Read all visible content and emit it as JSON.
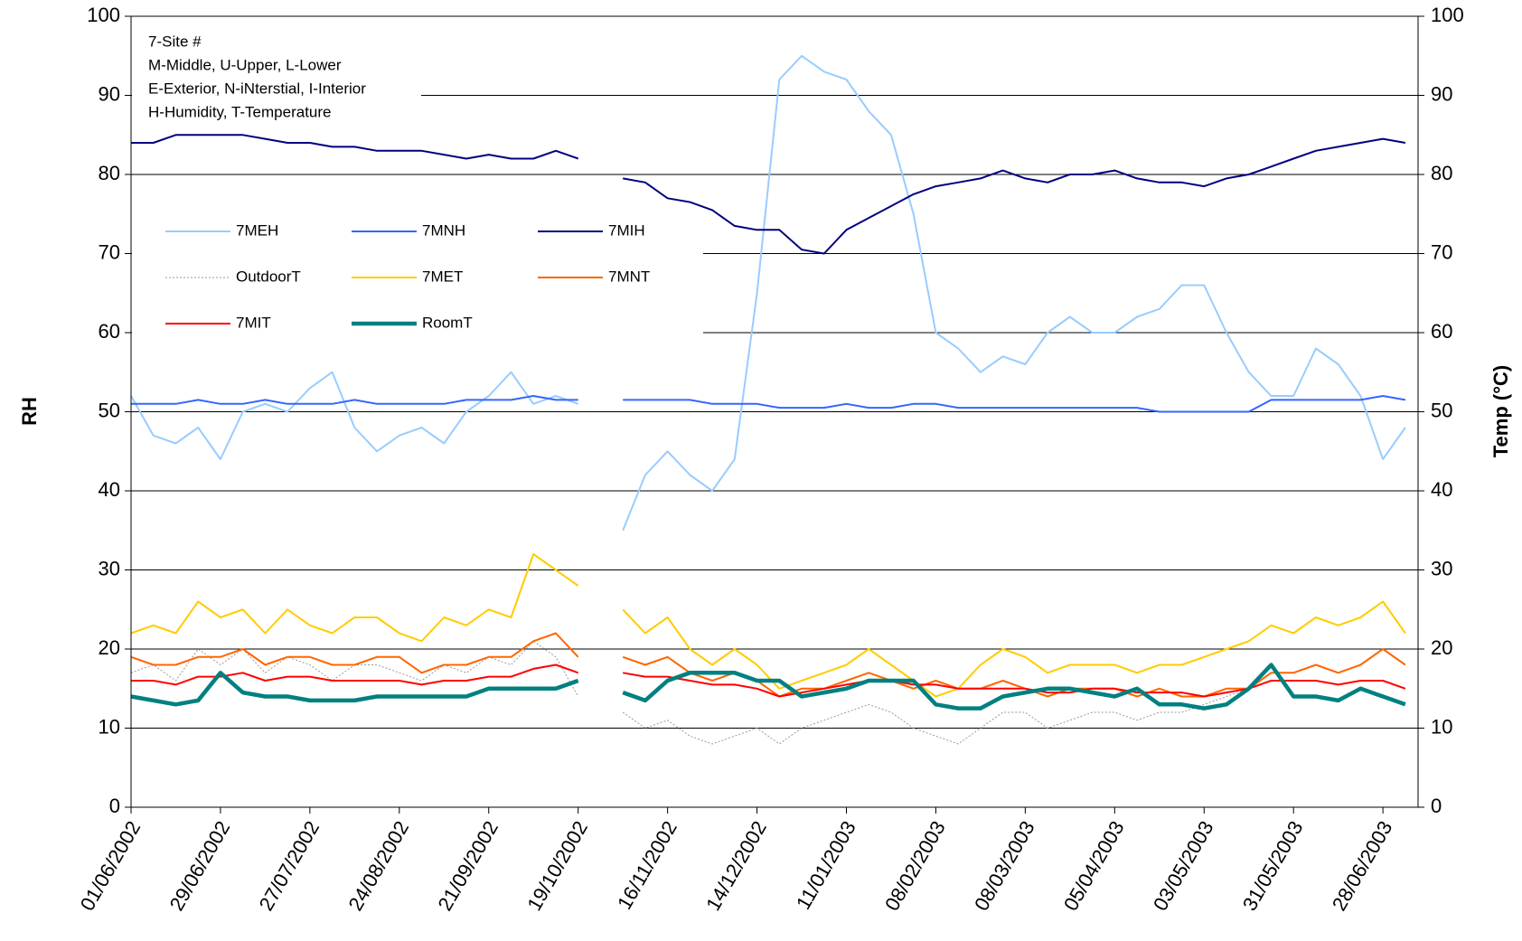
{
  "chart_data": {
    "type": "line",
    "annotation": [
      "7-Site #",
      "M-Middle, U-Upper, L-Lower",
      "E-Exterior, N-iNterstial, I-Interior",
      "H-Humidity, T-Temperature"
    ],
    "y_label": "RH",
    "y2_label": "Temp (°C)",
    "x": [
      "01/06/2002",
      "08/06/2002",
      "15/06/2002",
      "22/06/2002",
      "29/06/2002",
      "06/07/2002",
      "13/07/2002",
      "20/07/2002",
      "27/07/2002",
      "03/08/2002",
      "10/08/2002",
      "17/08/2002",
      "24/08/2002",
      "31/08/2002",
      "07/09/2002",
      "14/09/2002",
      "21/09/2002",
      "28/09/2002",
      "05/10/2002",
      "12/10/2002",
      "19/10/2002",
      "26/10/2002",
      "02/11/2002",
      "09/11/2002",
      "16/11/2002",
      "23/11/2002",
      "30/11/2002",
      "07/12/2002",
      "14/12/2002",
      "21/12/2002",
      "28/12/2002",
      "04/01/2003",
      "11/01/2003",
      "18/01/2003",
      "25/01/2003",
      "01/02/2003",
      "08/02/2003",
      "15/02/2003",
      "22/02/2003",
      "01/03/2003",
      "08/03/2003",
      "15/03/2003",
      "22/03/2003",
      "29/03/2003",
      "05/04/2003",
      "12/04/2003",
      "19/04/2003",
      "26/04/2003",
      "03/05/2003",
      "10/05/2003",
      "17/05/2003",
      "24/05/2003",
      "31/05/2003",
      "07/06/2003",
      "14/06/2003",
      "21/06/2003",
      "28/06/2003",
      "05/07/2003"
    ],
    "xlim": [
      "01/06/2002",
      "09/07/2003"
    ],
    "xticks": [
      "01/06/2002",
      "29/06/2002",
      "27/07/2002",
      "24/08/2002",
      "21/09/2002",
      "19/10/2002",
      "16/11/2002",
      "14/12/2002",
      "11/01/2003",
      "08/02/2003",
      "08/03/2003",
      "05/04/2003",
      "03/05/2003",
      "31/05/2003",
      "28/06/2003"
    ],
    "ylim": [
      0,
      100
    ],
    "yticks": [
      0,
      10,
      20,
      30,
      40,
      50,
      60,
      70,
      80,
      90,
      100
    ],
    "y2lim": [
      0,
      100
    ],
    "y2ticks": [
      0,
      10,
      20,
      30,
      40,
      50,
      60,
      70,
      80,
      90,
      100
    ],
    "grid": true,
    "series": [
      {
        "name": "7MEH",
        "color": "#99ccff",
        "line_width": 2,
        "values": [
          52,
          47,
          46,
          48,
          44,
          50,
          51,
          50,
          53,
          55,
          48,
          45,
          47,
          48,
          46,
          50,
          52,
          55,
          51,
          52,
          51,
          null,
          35,
          42,
          45,
          42,
          40,
          44,
          65,
          92,
          95,
          93,
          92,
          88,
          85,
          75,
          60,
          58,
          55,
          57,
          56,
          60,
          62,
          60,
          60,
          62,
          63,
          66,
          66,
          60,
          55,
          52,
          52,
          58,
          56,
          52,
          44,
          48
        ]
      },
      {
        "name": "7MNH",
        "color": "#3366ff",
        "line_width": 2,
        "values": [
          51,
          51,
          51,
          51.5,
          51,
          51,
          51.5,
          51,
          51,
          51,
          51.5,
          51,
          51,
          51,
          51,
          51.5,
          51.5,
          51.5,
          52,
          51.5,
          51.5,
          null,
          51.5,
          51.5,
          51.5,
          51.5,
          51,
          51,
          51,
          50.5,
          50.5,
          50.5,
          51,
          50.5,
          50.5,
          51,
          51,
          50.5,
          50.5,
          50.5,
          50.5,
          50.5,
          50.5,
          50.5,
          50.5,
          50.5,
          50,
          50,
          50,
          50,
          50,
          51.5,
          51.5,
          51.5,
          51.5,
          51.5,
          52,
          51.5
        ]
      },
      {
        "name": "7MIH",
        "color": "#000080",
        "line_width": 2,
        "values": [
          84,
          84,
          85,
          85,
          85,
          85,
          84.5,
          84,
          84,
          83.5,
          83.5,
          83,
          83,
          83,
          82.5,
          82,
          82.5,
          82,
          82,
          83,
          82,
          null,
          79.5,
          79,
          77,
          76.5,
          75.5,
          73.5,
          73,
          73,
          70.5,
          70,
          73,
          74.5,
          76,
          77.5,
          78.5,
          79,
          79.5,
          80.5,
          79.5,
          79,
          80,
          80,
          80.5,
          79.5,
          79,
          79,
          78.5,
          79.5,
          80,
          81,
          82,
          83,
          83.5,
          84,
          84.5,
          84
        ],
        "axis": "y"
      },
      {
        "name": "OutdoorT",
        "color": "#999999",
        "line_width": 1,
        "dash": "2,2",
        "axis": "y2",
        "values": [
          17,
          18,
          16,
          20,
          18,
          20,
          17,
          19,
          18,
          16,
          18,
          18,
          17,
          16,
          18,
          17,
          19,
          18,
          21,
          19,
          14,
          null,
          12,
          10,
          11,
          9,
          8,
          9,
          10,
          8,
          10,
          11,
          12,
          13,
          12,
          10,
          9,
          8,
          10,
          12,
          12,
          10,
          11,
          12,
          12,
          11,
          12,
          12,
          13,
          14,
          15,
          17,
          17,
          18,
          17,
          18,
          20,
          18
        ]
      },
      {
        "name": "7MET",
        "color": "#ffcc00",
        "line_width": 2,
        "axis": "y2",
        "values": [
          22,
          23,
          22,
          26,
          24,
          25,
          22,
          25,
          23,
          22,
          24,
          24,
          22,
          21,
          24,
          23,
          25,
          24,
          32,
          30,
          28,
          null,
          25,
          22,
          24,
          20,
          18,
          20,
          18,
          15,
          16,
          17,
          18,
          20,
          18,
          16,
          14,
          15,
          18,
          20,
          19,
          17,
          18,
          18,
          18,
          17,
          18,
          18,
          19,
          20,
          21,
          23,
          22,
          24,
          23,
          24,
          26,
          22
        ]
      },
      {
        "name": "7MNT",
        "color": "#ff6600",
        "line_width": 2,
        "axis": "y2",
        "values": [
          19,
          18,
          18,
          19,
          19,
          20,
          18,
          19,
          19,
          18,
          18,
          19,
          19,
          17,
          18,
          18,
          19,
          19,
          21,
          22,
          19,
          null,
          19,
          18,
          19,
          17,
          16,
          17,
          16,
          14,
          15,
          15,
          16,
          17,
          16,
          15,
          16,
          15,
          15,
          16,
          15,
          14,
          15,
          15,
          15,
          14,
          15,
          14,
          14,
          15,
          15,
          17,
          17,
          18,
          17,
          18,
          20,
          18
        ]
      },
      {
        "name": "7MIT",
        "color": "#ff0000",
        "line_width": 2,
        "axis": "y2",
        "values": [
          16,
          16,
          15.5,
          16.5,
          16.5,
          17,
          16,
          16.5,
          16.5,
          16,
          16,
          16,
          16,
          15.5,
          16,
          16,
          16.5,
          16.5,
          17.5,
          18,
          17,
          null,
          17,
          16.5,
          16.5,
          16,
          15.5,
          15.5,
          15,
          14,
          14.5,
          15,
          15.5,
          16,
          16,
          15.5,
          15.5,
          15,
          15,
          15,
          15,
          14.5,
          14.5,
          15,
          15,
          14.5,
          14.5,
          14.5,
          14,
          14.5,
          15,
          16,
          16,
          16,
          15.5,
          16,
          16,
          15
        ]
      },
      {
        "name": "RoomT",
        "color": "#008080",
        "line_width": 4.5,
        "axis": "y2",
        "values": [
          14,
          13.5,
          13,
          13.5,
          17,
          14.5,
          14,
          14,
          13.5,
          13.5,
          13.5,
          14,
          14,
          14,
          14,
          14,
          15,
          15,
          15,
          15,
          16,
          null,
          14.5,
          13.5,
          16,
          17,
          17,
          17,
          16,
          16,
          14,
          14.5,
          15,
          16,
          16,
          16,
          13,
          12.5,
          12.5,
          14,
          14.5,
          15,
          15,
          14.5,
          14,
          15,
          13,
          13,
          12.5,
          13,
          15,
          18,
          14,
          14,
          13.5,
          15,
          14,
          13
        ]
      }
    ]
  }
}
